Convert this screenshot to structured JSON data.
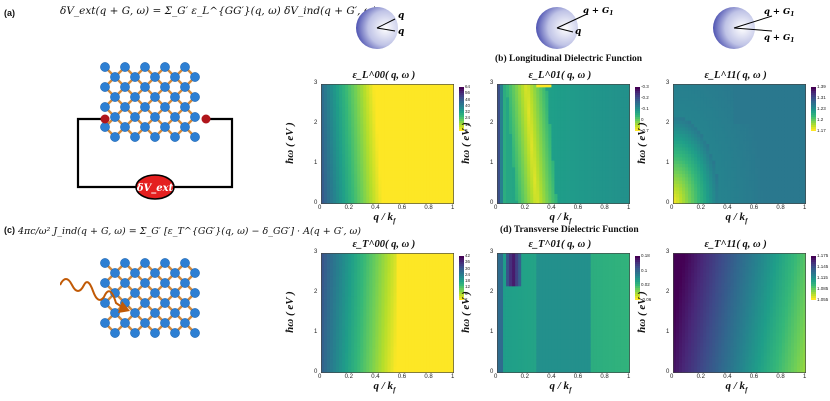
{
  "figure": {
    "panel_a": {
      "label": "(a)",
      "equation_lhs": "δV_ext(q + G, ω)",
      "equation_rhs": "= Σ_G′ ε_L^{GG′}(q, ω) δV_ind(q + G′, ω)",
      "source_label": "δV_ext"
    },
    "panel_c": {
      "label": "(c)",
      "equation_lhs": "4πc/ω² J_ind(q + G, ω)",
      "equation_rhs": "= Σ_G′ [ε_T^{GG′}(q, ω) − δ_GG′] · A(q + G′, ω)"
    },
    "vector_diagrams": [
      {
        "label_top": "q",
        "label_bottom": "q"
      },
      {
        "label_top": "q + G",
        "label_top_sub": "1",
        "label_bottom": "q"
      },
      {
        "label_top": "q + G",
        "label_top_sub": "1",
        "label_bottom": "q + G",
        "label_bottom_sub": "1"
      }
    ],
    "section_b_title": "(b) Longitudinal Dielectric Function",
    "section_d_title": "(d) Transverse Dielectric Function",
    "x_axis_label": "q / k",
    "x_axis_sub": "f",
    "y_axis_label": "ħω ( eV )",
    "x_ticks": [
      "0",
      "0.2",
      "0.4",
      "0.6",
      "0.8",
      "1"
    ],
    "y_ticks": [
      "0",
      "1",
      "2",
      "3"
    ]
  },
  "chart_data": [
    {
      "type": "heatmap",
      "title": "ε_L^00( q, ω )",
      "xlabel": "q / k_f",
      "ylabel": "ħω ( eV )",
      "xlim": [
        0,
        1
      ],
      "ylim": [
        0,
        3
      ],
      "colorbar_ticks": [
        "64",
        "56",
        "48",
        "40",
        "32",
        "24",
        "16",
        "8"
      ],
      "colorscale": "viridis-like",
      "pattern": "vertical bands, values decrease to yellow beyond q ≈ 0.45"
    },
    {
      "type": "heatmap",
      "title": "ε_L^01( q, ω )",
      "xlabel": "q / k_f",
      "ylabel": "ħω ( eV )",
      "xlim": [
        0,
        1
      ],
      "ylim": [
        0,
        3
      ],
      "colorbar_ticks": [
        "-0.3",
        "-0.2",
        "-0.1",
        "0",
        "-0.7"
      ],
      "colorscale": "viridis-like",
      "pattern": "yellow V-shaped feature near q ≈ 0.3, dark region near q = 0"
    },
    {
      "type": "heatmap",
      "title": "ε_L^11( q, ω )",
      "xlabel": "q / k_f",
      "ylabel": "ħω ( eV )",
      "xlim": [
        0,
        1
      ],
      "ylim": [
        0,
        3
      ],
      "colorbar_ticks": [
        "1.39",
        "1.31",
        "1.23",
        "1.2",
        "1.17"
      ],
      "colorscale": "viridis-like",
      "pattern": "yellow lobe at small q and low ω, teal elsewhere"
    },
    {
      "type": "heatmap",
      "title": "ε_T^00( q, ω )",
      "xlabel": "q / k_f",
      "ylabel": "ħω ( eV )",
      "xlim": [
        0,
        1
      ],
      "ylim": [
        0,
        3
      ],
      "colorbar_ticks": [
        "42",
        "36",
        "30",
        "24",
        "18",
        "12",
        "6",
        "2"
      ],
      "colorscale": "viridis-like",
      "pattern": "vertical bands, yellow beyond q ≈ 0.55"
    },
    {
      "type": "heatmap",
      "title": "ε_T^01( q, ω )",
      "xlabel": "q / k_f",
      "ylabel": "ħω ( eV )",
      "xlim": [
        0,
        1
      ],
      "ylim": [
        0,
        3
      ],
      "colorbar_ticks": [
        "0.18",
        "0.1",
        "0.02",
        "-0.06"
      ],
      "colorscale": "viridis-like",
      "pattern": "dark curve near q ≈ 0.15 at high ω, green elsewhere"
    },
    {
      "type": "heatmap",
      "title": "ε_T^11( q, ω )",
      "xlabel": "q / k_f",
      "ylabel": "ħω ( eV )",
      "xlim": [
        0,
        1
      ],
      "ylim": [
        0,
        3
      ],
      "colorbar_ticks": [
        "1.175",
        "1.145",
        "1.115",
        "1.085",
        "1.055"
      ],
      "colorscale": "viridis-like",
      "pattern": "horizontal gradient dark-purple at small q to green-yellow at q = 1"
    }
  ]
}
